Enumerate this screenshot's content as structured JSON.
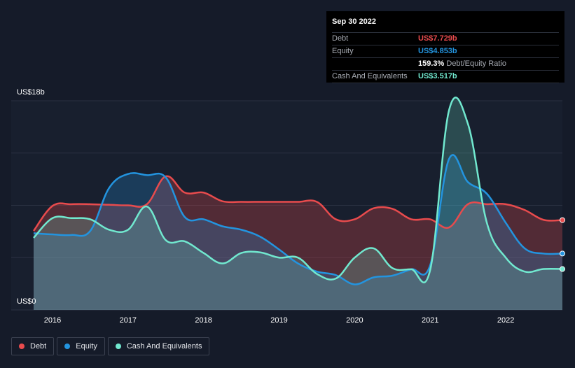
{
  "tooltip": {
    "date": "Sep 30 2022",
    "rows": [
      {
        "label": "Debt",
        "value": "US$7.729b"
      },
      {
        "label": "Equity",
        "value": "US$4.853b"
      },
      {
        "label": "",
        "value": "159.3%",
        "suffix": "Debt/Equity Ratio"
      },
      {
        "label": "Cash And Equivalents",
        "value": "US$3.517b"
      }
    ]
  },
  "colors": {
    "debt": "#e84b4d",
    "equity": "#2394df",
    "cash": "#71e8cf",
    "background": "#151b29"
  },
  "legend": [
    {
      "name": "Debt",
      "color": "#e84b4d"
    },
    {
      "name": "Equity",
      "color": "#2394df"
    },
    {
      "name": "Cash And Equivalents",
      "color": "#71e8cf"
    }
  ],
  "chart_data": {
    "type": "area",
    "y_axis_labels": [
      "US$18b",
      "US$0"
    ],
    "ylim": [
      0,
      18
    ],
    "x_ticks": [
      "2016",
      "2017",
      "2018",
      "2019",
      "2020",
      "2021",
      "2022"
    ],
    "x_tick_values": [
      2016,
      2017,
      2018,
      2019,
      2020,
      2021,
      2022
    ],
    "xlim": [
      2015.75,
      2022.75
    ],
    "grid": true,
    "legend_position": "bottom-left",
    "series": [
      {
        "name": "Debt",
        "x": [
          2015.75,
          2016.0,
          2016.25,
          2016.5,
          2016.75,
          2017.0,
          2017.25,
          2017.5,
          2017.75,
          2018.0,
          2018.25,
          2018.5,
          2018.75,
          2019.0,
          2019.25,
          2019.5,
          2019.75,
          2020.0,
          2020.25,
          2020.5,
          2020.75,
          2021.0,
          2021.25,
          2021.5,
          2021.75,
          2022.0,
          2022.25,
          2022.5,
          2022.75
        ],
        "values": [
          6.8,
          8.95,
          9.1,
          9.1,
          9.05,
          9.0,
          9.1,
          11.5,
          10.1,
          10.1,
          9.35,
          9.3,
          9.3,
          9.3,
          9.3,
          9.3,
          7.8,
          7.8,
          8.75,
          8.7,
          7.8,
          7.8,
          7.1,
          9.1,
          9.1,
          9.1,
          8.6,
          7.75,
          7.73
        ]
      },
      {
        "name": "Equity",
        "x": [
          2015.75,
          2016.0,
          2016.25,
          2016.5,
          2016.75,
          2017.0,
          2017.25,
          2017.5,
          2017.75,
          2018.0,
          2018.25,
          2018.5,
          2018.75,
          2019.0,
          2019.25,
          2019.5,
          2019.75,
          2020.0,
          2020.25,
          2020.5,
          2020.75,
          2021.0,
          2021.25,
          2021.5,
          2021.75,
          2022.0,
          2022.25,
          2022.5,
          2022.75
        ],
        "values": [
          6.6,
          6.5,
          6.45,
          6.8,
          10.5,
          11.7,
          11.6,
          11.4,
          8.0,
          7.8,
          7.2,
          6.9,
          6.3,
          5.2,
          4.0,
          3.3,
          3.0,
          2.2,
          2.8,
          2.95,
          3.5,
          3.85,
          13.0,
          11.0,
          10.0,
          7.5,
          5.3,
          4.85,
          4.85
        ]
      },
      {
        "name": "Cash And Equivalents",
        "x": [
          2015.75,
          2016.0,
          2016.25,
          2016.5,
          2016.75,
          2017.0,
          2017.25,
          2017.5,
          2017.75,
          2018.0,
          2018.25,
          2018.5,
          2018.75,
          2019.0,
          2019.25,
          2019.5,
          2019.75,
          2020.0,
          2020.25,
          2020.5,
          2020.75,
          2021.0,
          2021.25,
          2021.5,
          2021.75,
          2022.0,
          2022.25,
          2022.5,
          2022.75
        ],
        "values": [
          6.2,
          7.9,
          7.9,
          7.8,
          6.9,
          6.9,
          8.9,
          6.0,
          5.9,
          4.9,
          4.0,
          4.9,
          4.95,
          4.5,
          4.5,
          3.1,
          2.7,
          4.5,
          5.3,
          3.6,
          3.5,
          3.45,
          17.2,
          16.0,
          7.5,
          4.5,
          3.3,
          3.52,
          3.52
        ]
      }
    ]
  }
}
